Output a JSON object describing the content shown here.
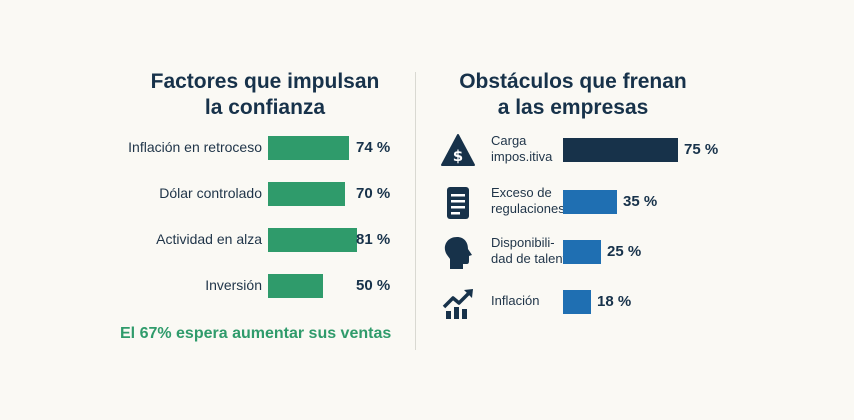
{
  "chart_data": [
    {
      "type": "bar",
      "orientation": "horizontal",
      "title": "Factores que impulsan la confianza",
      "title_lines": [
        "Factores que impulsan",
        "la confianza"
      ],
      "categories": [
        "Inflación en retroceso",
        "Dólar controlado",
        "Actividad en alza",
        "Inversión"
      ],
      "values": [
        74,
        70,
        81,
        50
      ],
      "value_labels": [
        "74 %",
        "70 %",
        "81 %",
        "50 %"
      ],
      "unit": "%",
      "xlim": [
        0,
        100
      ],
      "bar_color": "#2f9b6b",
      "annotation": "El 67% espera aumentar sus ventas"
    },
    {
      "type": "bar",
      "orientation": "horizontal",
      "title": "Obstáculos que frenan a las empresas",
      "title_lines": [
        "Obstáculos que frenan",
        "a las empresas"
      ],
      "categories": [
        {
          "lines": [
            "Carga",
            "impos.itiva"
          ],
          "icon": "dollar-warning-icon"
        },
        {
          "lines": [
            "Exceso de",
            "regulaciones"
          ],
          "icon": "document-icon"
        },
        {
          "lines": [
            "Disponibili-",
            "dad de talento"
          ],
          "icon": "head-profile-icon"
        },
        {
          "lines": [
            "Inflación"
          ],
          "icon": "trend-up-chart-icon"
        }
      ],
      "values": [
        75,
        35,
        25,
        18
      ],
      "value_labels": [
        "75 %",
        "35 %",
        "25 %",
        "18 %"
      ],
      "unit": "%",
      "xlim": [
        0,
        100
      ],
      "bar_colors": [
        "#17324a",
        "#1f6fb2",
        "#1f6fb2",
        "#1f6fb2"
      ]
    }
  ]
}
